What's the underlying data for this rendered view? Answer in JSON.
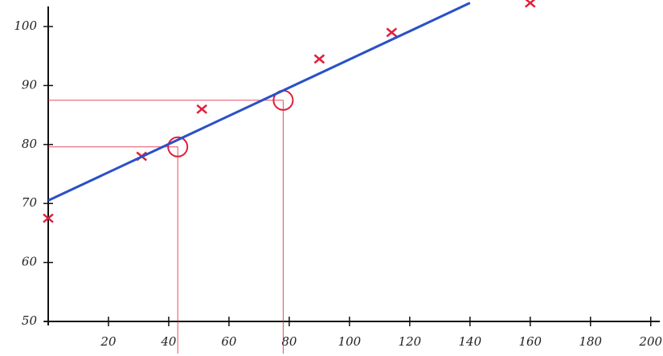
{
  "chart_data": {
    "type": "scatter",
    "xlim": [
      0,
      203
    ],
    "ylim": [
      50,
      104.5
    ],
    "xticks": [
      20,
      40,
      60,
      80,
      100,
      120,
      140,
      160,
      180,
      200
    ],
    "yticks": [
      50,
      60,
      70,
      80,
      90,
      100
    ],
    "series": [
      {
        "color": "#e0203a",
        "marker": "x",
        "x": [
          0,
          31,
          51,
          90,
          114,
          160
        ],
        "values": [
          67.5,
          78,
          86,
          94.5,
          99,
          104
        ]
      },
      {
        "color": "#e0203a",
        "marker": "circle",
        "x": [
          43,
          78
        ],
        "values": [
          79.6,
          87.5
        ]
      },
      {
        "color": "#2a50c8",
        "marker": "line",
        "x": [
          0,
          140
        ],
        "values": [
          70.5,
          104
        ]
      }
    ]
  }
}
